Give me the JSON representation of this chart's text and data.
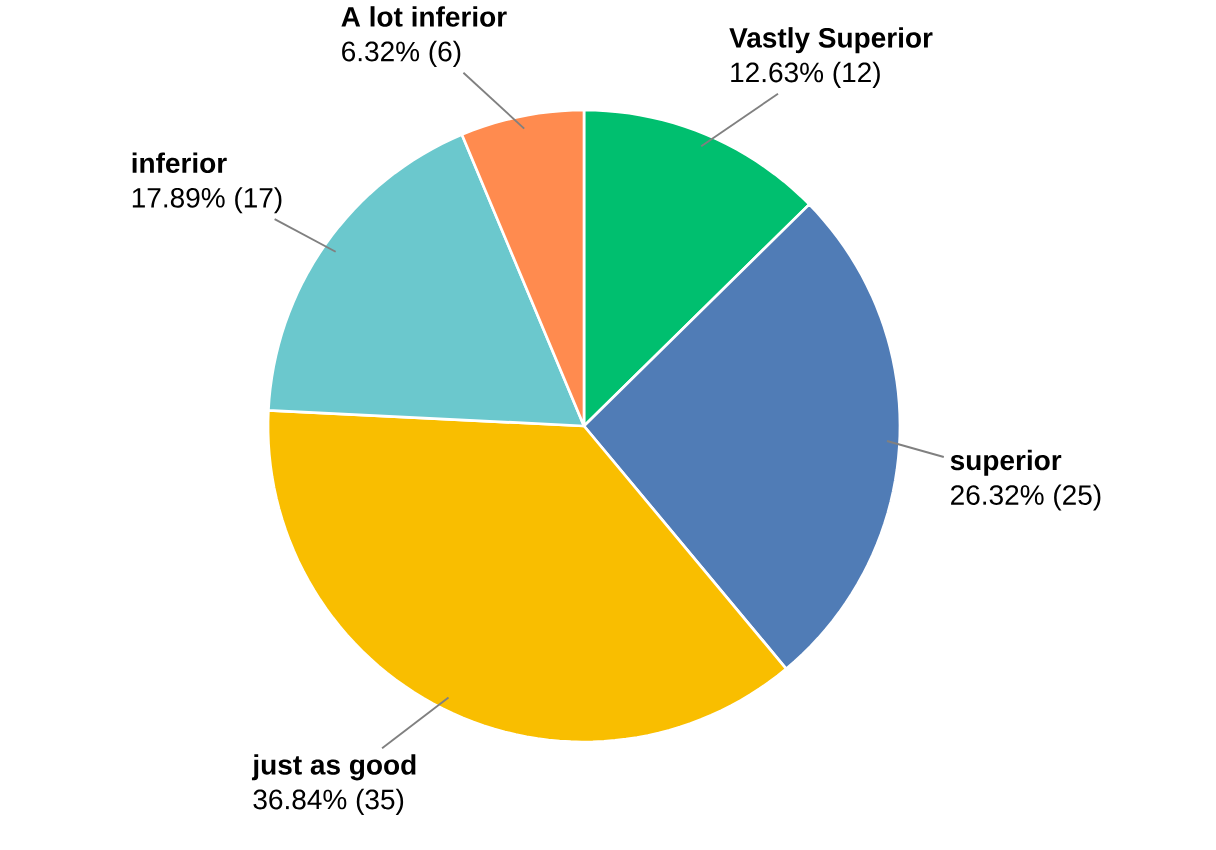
{
  "chart_data": {
    "type": "pie",
    "categories": [
      "Vastly Superior",
      "superior",
      "just as good",
      "inferior",
      "A lot inferior"
    ],
    "values": [
      12,
      25,
      35,
      17,
      6
    ],
    "value_labels": [
      "12.63% (12)",
      "26.32% (25)",
      "36.84% (35)",
      "17.89% (17)",
      "6.32% (6)"
    ],
    "colors": [
      "#00bf6f",
      "#507cb6",
      "#f9be00",
      "#6bc8cd",
      "#ff8b4f"
    ]
  }
}
